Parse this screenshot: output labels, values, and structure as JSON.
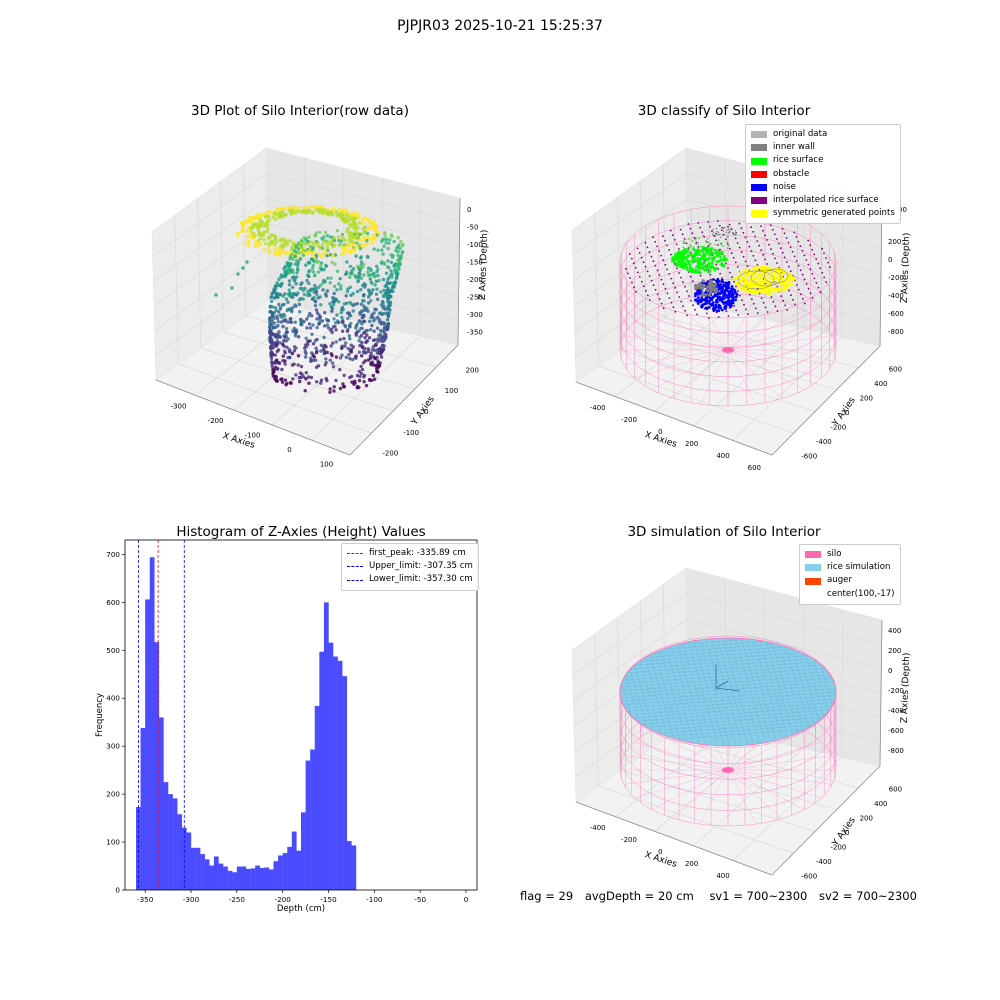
{
  "figure": {
    "suptitle": "PJPJR03 2025-10-21 15:25:37"
  },
  "panels": {
    "raw": {
      "title": "3D Plot of Silo Interior(row data)",
      "xlabel": "X Axies",
      "ylabel": "Y Axies",
      "zlabel": "Z Axies (Depth)",
      "x_ticks": [
        "-300",
        "-200",
        "-100",
        "0",
        "100"
      ],
      "y_ticks": [
        "-200",
        "-100",
        "0",
        "100",
        "200"
      ],
      "z_ticks": [
        "0",
        "-50",
        "-100",
        "-150",
        "-200",
        "-250",
        "-300",
        "-350"
      ]
    },
    "classify": {
      "title": "3D classify of Silo Interior",
      "xlabel": "X Axies",
      "ylabel": "Y Axies",
      "zlabel": "Z Axies (Depth)",
      "x_ticks": [
        "-400",
        "-200",
        "0",
        "200",
        "400",
        "600"
      ],
      "y_ticks": [
        "-600",
        "-400",
        "-200",
        "0",
        "200",
        "400",
        "600"
      ],
      "z_ticks": [
        "200",
        "0",
        "-200",
        "-400",
        "-600",
        "-800"
      ],
      "z_tick_partial": "00",
      "legend": [
        {
          "label": "original data",
          "color": "#b3b3b3"
        },
        {
          "label": "inner wall",
          "color": "#808080"
        },
        {
          "label": "rice surface",
          "color": "#00ff00"
        },
        {
          "label": "obstacle",
          "color": "#ff0000"
        },
        {
          "label": "noise",
          "color": "#0000ff"
        },
        {
          "label": "interpolated rice surface",
          "color": "#800080"
        },
        {
          "label": "symmetric generated points",
          "color": "#ffff00"
        }
      ]
    },
    "histogram": {
      "title": "Histogram of Z-Axies (Height) Values",
      "xlabel": "Depth (cm)",
      "ylabel": "Frequency",
      "legend": [
        {
          "label": "first_peak: -335.89 cm",
          "color": "#ff0000"
        },
        {
          "label": "Upper_limit: -307.35 cm",
          "color": "#0000ff"
        },
        {
          "label": "Lower_limit: -357.30 cm",
          "color": "#0000ff"
        }
      ]
    },
    "simulation": {
      "title": "3D simulation of Silo Interior",
      "xlabel": "X Axies",
      "ylabel": "Y Axies",
      "zlabel": "Z Axies (Depth)",
      "x_ticks": [
        "-400",
        "-200",
        "0",
        "200",
        "400",
        "600"
      ],
      "y_ticks": [
        "-600",
        "-400",
        "-200",
        "0",
        "200",
        "400",
        "600"
      ],
      "z_ticks": [
        "400",
        "200",
        "0",
        "-200",
        "-400",
        "-600",
        "-800"
      ],
      "legend": [
        {
          "label": "silo",
          "color": "#ff69b4"
        },
        {
          "label": "rice simulation",
          "color": "#87ceeb"
        },
        {
          "label": "auger",
          "color": "#ff4500"
        },
        {
          "label": "center(100,-17)",
          "color": ""
        }
      ]
    }
  },
  "status": {
    "flag": "flag = 29",
    "avg_depth": "avgDepth = 20 cm",
    "sv1": "sv1 = 700~2300",
    "sv2": "sv2 = 700~2300"
  },
  "chart_data": [
    {
      "type": "scatter",
      "title": "3D Plot of Silo Interior(row data)",
      "xlabel": "X Axies",
      "ylabel": "Y Axies",
      "zlabel": "Z Axies (Depth)",
      "xlim": [
        -380,
        180
      ],
      "ylim": [
        -220,
        260
      ],
      "zlim": [
        -380,
        10
      ],
      "colormap": "viridis"
    },
    {
      "type": "scatter",
      "title": "3D classify of Silo Interior",
      "xlabel": "X Axies",
      "ylabel": "Y Axies",
      "zlabel": "Z Axies (Depth)",
      "xlim": [
        -500,
        700
      ],
      "ylim": [
        -700,
        700
      ],
      "zlim": [
        -900,
        300
      ],
      "series": [
        {
          "name": "original data"
        },
        {
          "name": "inner wall"
        },
        {
          "name": "rice surface"
        },
        {
          "name": "obstacle"
        },
        {
          "name": "noise"
        },
        {
          "name": "interpolated rice surface"
        },
        {
          "name": "symmetric generated points"
        }
      ]
    },
    {
      "type": "bar",
      "title": "Histogram of Z-Axies (Height) Values",
      "xlabel": "Depth (cm)",
      "ylabel": "Frequency",
      "xlim": [
        -372,
        12
      ],
      "ylim": [
        0,
        730
      ],
      "x_ticks": [
        -350,
        -300,
        -250,
        -200,
        -150,
        -100,
        -50,
        0
      ],
      "y_ticks": [
        0,
        100,
        200,
        300,
        400,
        500,
        600,
        700
      ],
      "bin_start": -360,
      "bin_width": 5,
      "values": [
        173,
        338,
        606,
        694,
        517,
        360,
        225,
        200,
        191,
        158,
        130,
        120,
        88,
        88,
        75,
        64,
        51,
        70,
        55,
        49,
        40,
        37,
        49,
        49,
        44,
        45,
        51,
        46,
        47,
        43,
        60,
        72,
        77,
        90,
        122,
        82,
        162,
        270,
        293,
        384,
        497,
        600,
        516,
        487,
        478,
        446,
        102,
        93
      ],
      "vlines": [
        {
          "x": -335.89,
          "label": "first_peak: -335.89 cm",
          "color": "#ff0000"
        },
        {
          "x": -307.35,
          "label": "Upper_limit: -307.35 cm",
          "color": "#0000ff"
        },
        {
          "x": -357.3,
          "label": "Lower_limit: -357.30 cm",
          "color": "#0000ff"
        }
      ],
      "bar_color": "#4c4cff",
      "legend_position": "upper right"
    },
    {
      "type": "scatter",
      "title": "3D simulation of Silo Interior",
      "xlabel": "X Axies",
      "ylabel": "Y Axies",
      "zlabel": "Z Axies (Depth)",
      "xlim": [
        -500,
        700
      ],
      "ylim": [
        -700,
        700
      ],
      "zlim": [
        -900,
        450
      ],
      "series": [
        {
          "name": "silo"
        },
        {
          "name": "rice simulation"
        },
        {
          "name": "auger"
        },
        {
          "name": "center(100,-17)"
        }
      ]
    }
  ]
}
